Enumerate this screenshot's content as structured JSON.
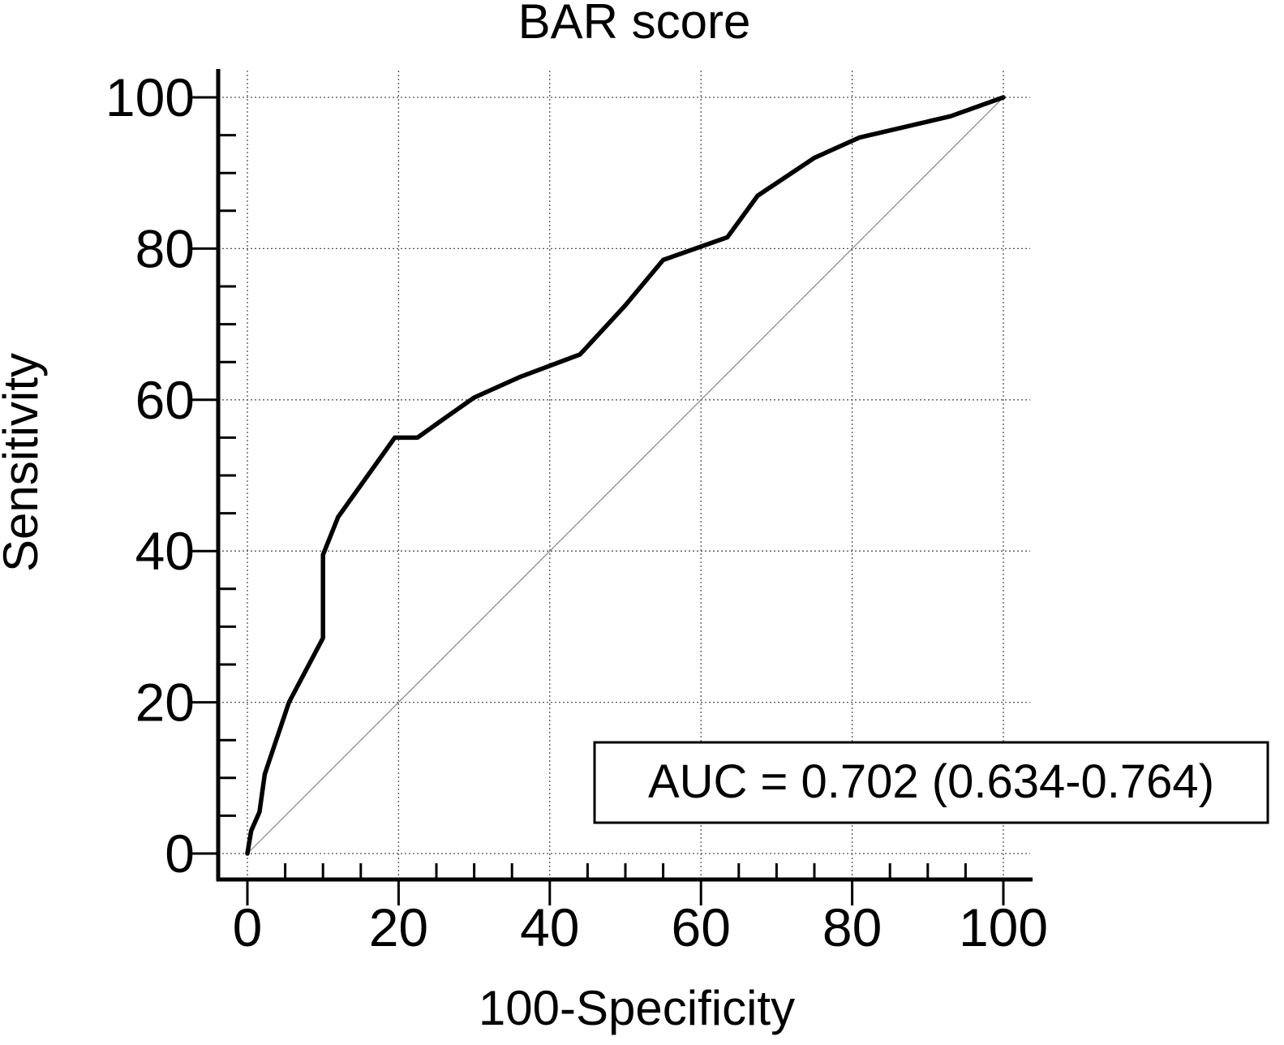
{
  "chart_data": {
    "type": "line",
    "title": "BAR score",
    "xlabel": "100-Specificity",
    "ylabel": "Sensitivity",
    "xlim": [
      0,
      100
    ],
    "ylim": [
      0,
      100
    ],
    "x_ticks": [
      0,
      20,
      40,
      60,
      80,
      100
    ],
    "y_ticks": [
      0,
      20,
      40,
      60,
      80,
      100
    ],
    "x_tick_labels": [
      "0",
      "20",
      "40",
      "60",
      "80",
      "100"
    ],
    "y_tick_labels": [
      "0",
      "20",
      "40",
      "60",
      "80",
      "100"
    ],
    "grid": true,
    "annotation": "AUC = 0.702 (0.634-0.764)",
    "series": [
      {
        "style": "roc-curve",
        "color": "#000000",
        "x": [
          0,
          0.5,
          1.6,
          2.3,
          5.5,
          10,
          10,
          12,
          19.5,
          22.5,
          26,
          30,
          36,
          44,
          50,
          55,
          63.5,
          67.5,
          75,
          81,
          93,
          100
        ],
        "y": [
          0,
          3,
          5.5,
          10.5,
          20,
          28.5,
          39.5,
          44.5,
          55,
          55,
          57.5,
          60.3,
          63,
          66,
          72.5,
          78.5,
          81.5,
          87,
          92,
          94.7,
          97.5,
          100
        ]
      },
      {
        "style": "reference-diagonal",
        "color": "#888888",
        "x": [
          0,
          100
        ],
        "y": [
          0,
          100
        ]
      }
    ]
  }
}
